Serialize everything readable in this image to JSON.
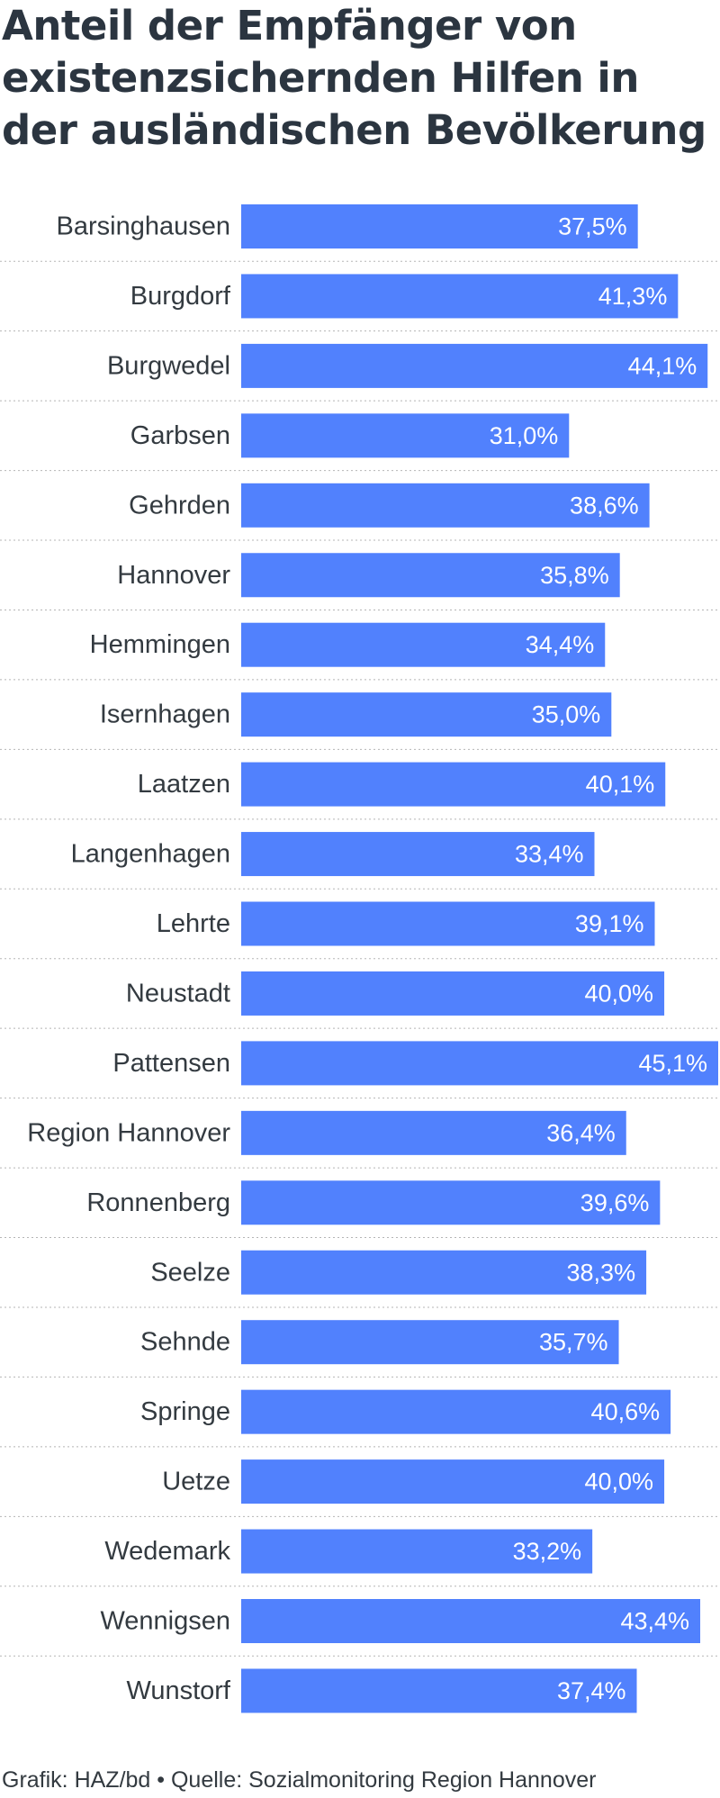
{
  "chart_data": {
    "type": "bar",
    "orientation": "horizontal",
    "title": "Anteil der Empfänger von existenzsichernden Hilfen in der ausländischen Bevölkerung",
    "categories": [
      "Barsinghausen",
      "Burgdorf",
      "Burgwedel",
      "Garbsen",
      "Gehrden",
      "Hannover",
      "Hemmingen",
      "Isernhagen",
      "Laatzen",
      "Langenhagen",
      "Lehrte",
      "Neustadt",
      "Pattensen",
      "Region Hannover",
      "Ronnenberg",
      "Seelze",
      "Sehnde",
      "Springe",
      "Uetze",
      "Wedemark",
      "Wennigsen",
      "Wunstorf"
    ],
    "values": [
      37.5,
      41.3,
      44.1,
      31.0,
      38.6,
      35.8,
      34.4,
      35.0,
      40.1,
      33.4,
      39.1,
      40.0,
      45.1,
      36.4,
      39.6,
      38.3,
      35.7,
      40.6,
      40.0,
      33.2,
      43.4,
      37.4
    ],
    "value_labels": [
      "37,5%",
      "41,3%",
      "44,1%",
      "31,0%",
      "38,6%",
      "35,8%",
      "34,4%",
      "35,0%",
      "40,1%",
      "33,4%",
      "39,1%",
      "40,0%",
      "45,1%",
      "36,4%",
      "39,6%",
      "38,3%",
      "35,7%",
      "40,6%",
      "40,0%",
      "33,2%",
      "43,4%",
      "37,4%"
    ],
    "xlim": [
      0,
      45.1
    ],
    "bar_color": "#5181fd",
    "grid": false,
    "separators": "dotted"
  },
  "footer": "Grafik: HAZ/bd • Quelle: Sozialmonitoring Region Hannover"
}
